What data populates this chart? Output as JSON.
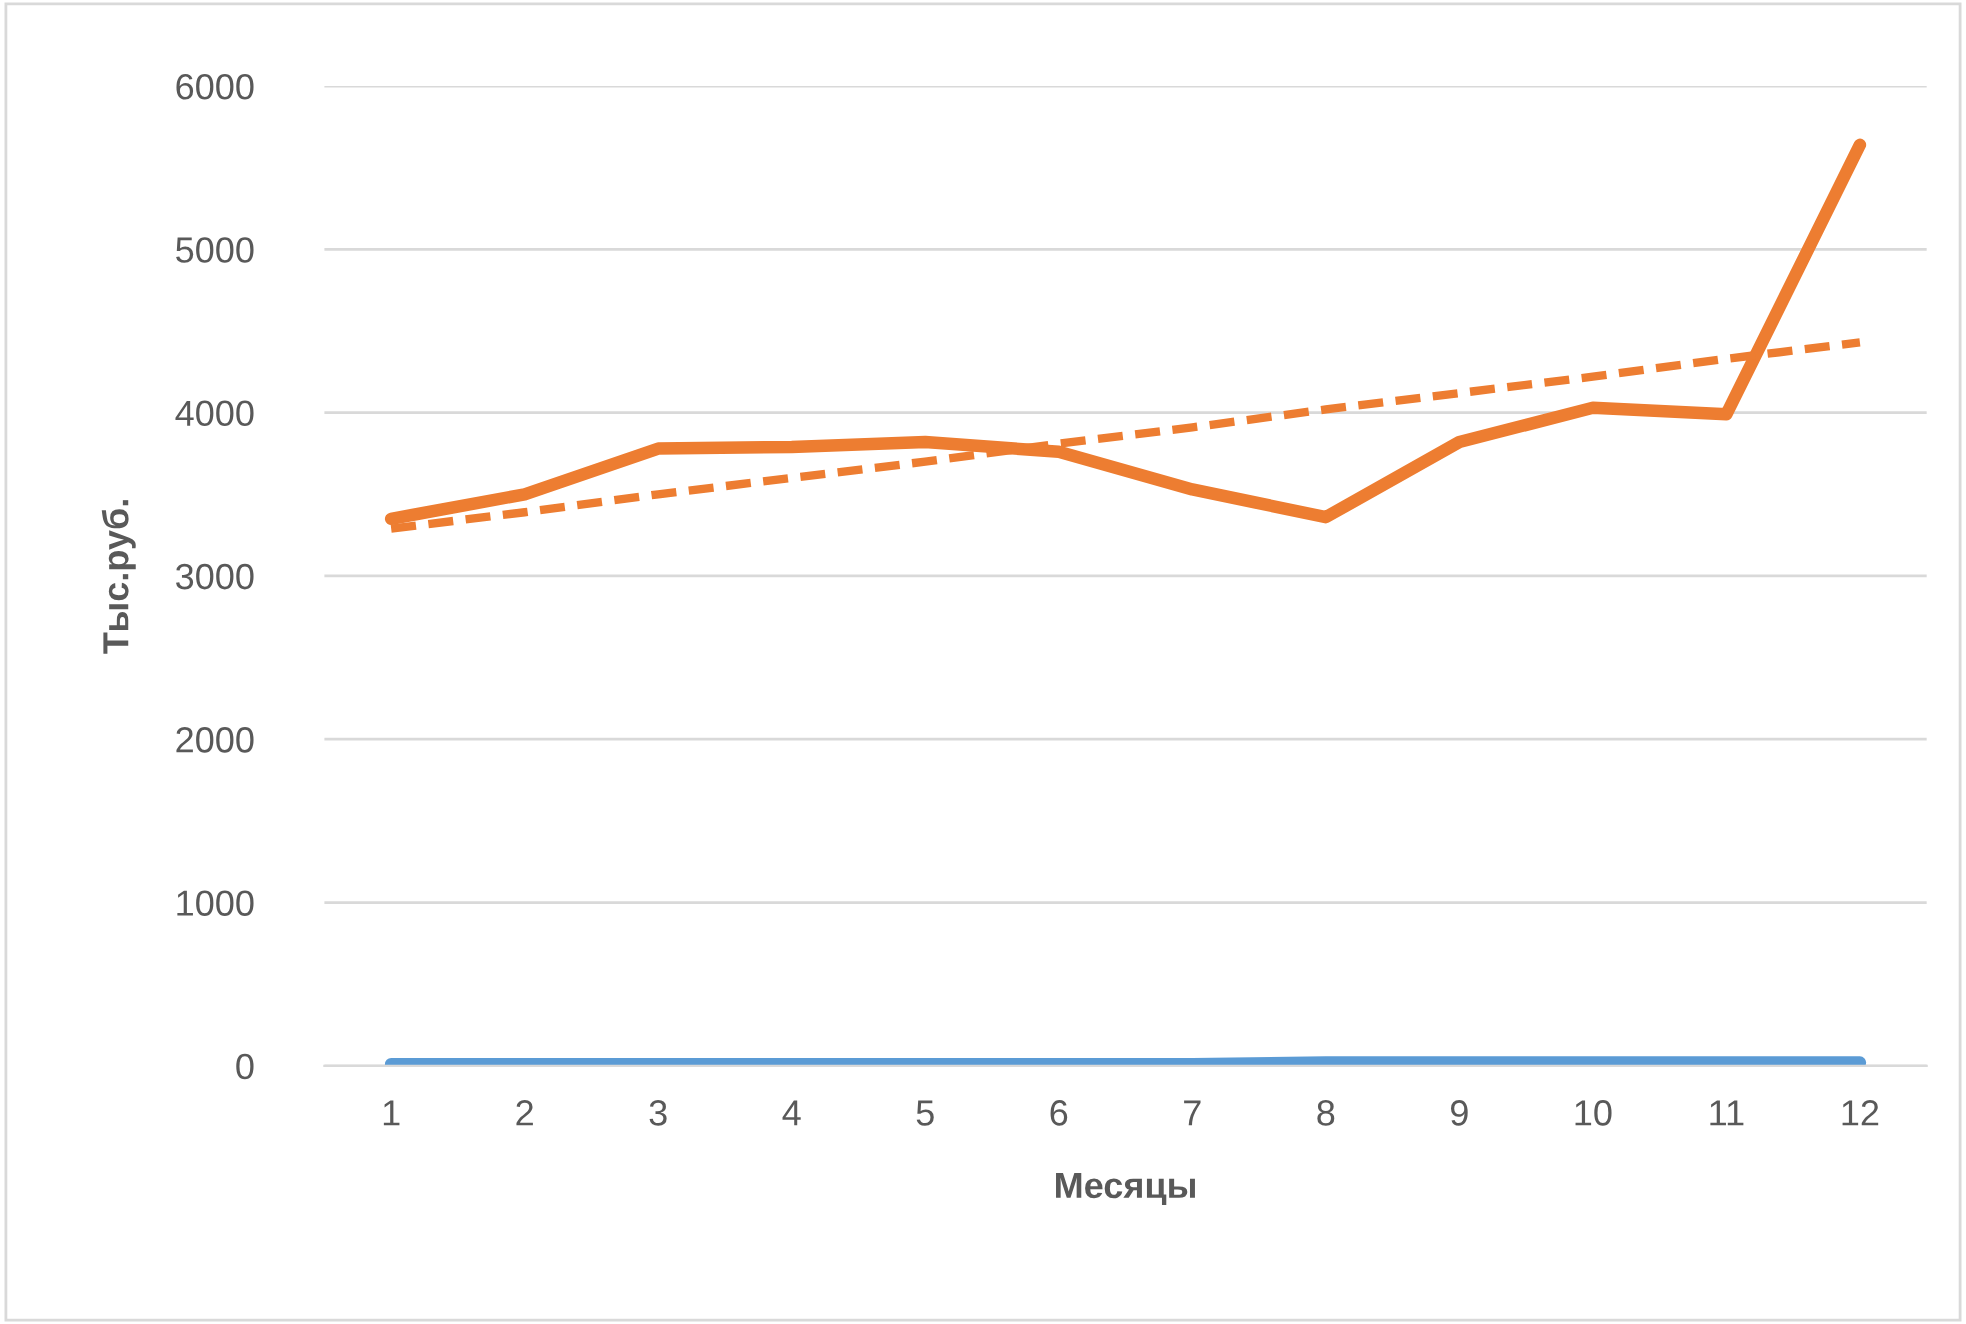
{
  "chart_data": {
    "type": "line",
    "xlabel": "Месяцы",
    "ylabel": "Тыс.руб.",
    "categories": [
      "1",
      "2",
      "3",
      "4",
      "5",
      "6",
      "7",
      "8",
      "9",
      "10",
      "11",
      "12"
    ],
    "series": [
      {
        "color": "#5b9bd5",
        "values": [
          10,
          10,
          10,
          10,
          10,
          10,
          10,
          20,
          20,
          20,
          20,
          20
        ]
      },
      {
        "color": "#ed7d31",
        "values": [
          3350,
          3500,
          3780,
          3790,
          3820,
          3760,
          3530,
          3360,
          3820,
          4030,
          3990,
          5640
        ]
      },
      {
        "color": "#ed7d31",
        "line_style": "dashed",
        "values": [
          3290,
          3390,
          3500,
          3600,
          3700,
          3810,
          3910,
          4020,
          4120,
          4220,
          4330,
          4430
        ]
      }
    ],
    "ylim": [
      0,
      6000
    ],
    "yticks": [
      0,
      1000,
      2000,
      3000,
      4000,
      5000,
      6000
    ],
    "grid": "y",
    "legend": false,
    "marker": "none"
  }
}
